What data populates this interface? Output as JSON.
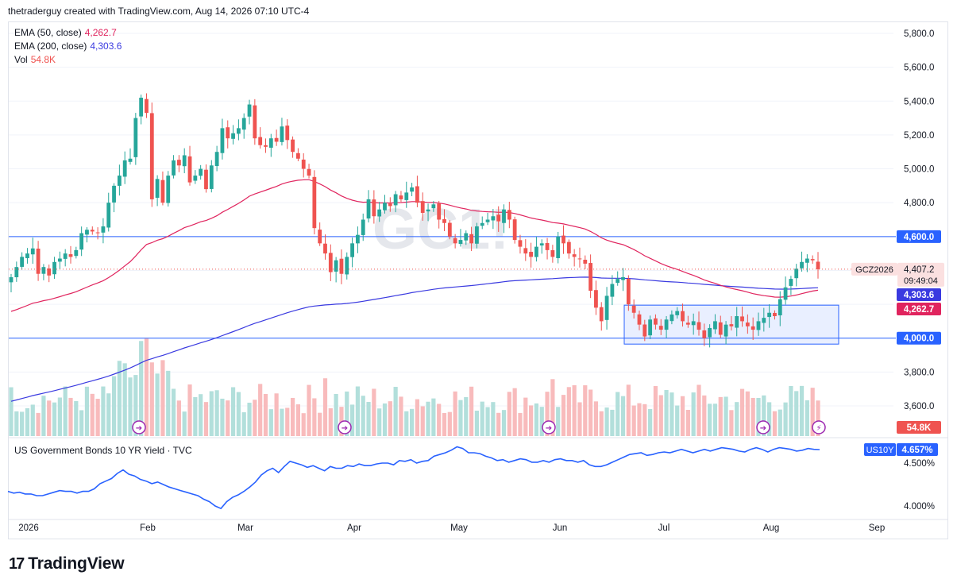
{
  "header": {
    "text": "thetraderguy created with TradingView.com, Aug 14, 2026 07:10 UTC-4"
  },
  "legend": {
    "ema50": {
      "label": "EMA (50, close)",
      "value": "4,262.7",
      "color": "#e0245e"
    },
    "ema200": {
      "label": "EMA (200, close)",
      "value": "4,303.6",
      "color": "#3a3ae0"
    },
    "vol": {
      "label": "Vol",
      "value": "54.8K",
      "color": "#ef5350"
    }
  },
  "watermark": "GC1!",
  "logo": {
    "mark": "17",
    "text": "TradingView"
  },
  "colors": {
    "up": "#26a69a",
    "down": "#ef5350",
    "up_vol": "#b2dfdb",
    "down_vol": "#f8bbbc",
    "grid": "#f0f3fa",
    "hline": "#2962ff",
    "box": "#2962ff"
  },
  "chart_data": [
    {
      "type": "candlestick",
      "title": "",
      "price_axis": {
        "ticks": [
          "5,800.0",
          "5,600.0",
          "5,400.0",
          "5,200.0",
          "5,000.0",
          "4,800.0",
          "3,800.0",
          "3,600.0"
        ],
        "ylim": [
          3450,
          5840
        ]
      },
      "time_axis": {
        "labels": [
          "2026",
          "Feb",
          "Mar",
          "Apr",
          "May",
          "Jun",
          "Jul",
          "Aug",
          "Sep"
        ]
      },
      "horizontal_lines": [
        {
          "price": 4600,
          "label": "4,600.0"
        },
        {
          "price": 4000,
          "label": "4,000.0"
        }
      ],
      "rectangle": {
        "price_top": 4195,
        "price_bottom": 3965,
        "start": "Jun 22",
        "end": "Aug 18"
      },
      "last_price": {
        "symbol": "GCZ2026",
        "price": "4,407.2",
        "countdown": "09:49:04"
      },
      "ema_labels": {
        "ema200": "4,303.6",
        "ema50": "4,262.7"
      },
      "volume_label": "54.8K",
      "close": [
        4360,
        4420,
        4480,
        4500,
        4530,
        4380,
        4420,
        4370,
        4450,
        4470,
        4500,
        4480,
        4520,
        4620,
        4640,
        4630,
        4620,
        4660,
        4800,
        4900,
        4960,
        5050,
        5060,
        5300,
        5420,
        5330,
        4820,
        4940,
        4800,
        4960,
        5050,
        5020,
        5080,
        4920,
        4960,
        5000,
        4880,
        5020,
        5100,
        5240,
        5180,
        5210,
        5240,
        5300,
        5380,
        5180,
        5140,
        5130,
        5180,
        5160,
        5250,
        5170,
        5100,
        5060,
        5000,
        4960,
        4650,
        4560,
        4500,
        4390,
        4460,
        4380,
        4480,
        4560,
        4610,
        4700,
        4820,
        4720,
        4760,
        4800,
        4780,
        4850,
        4820,
        4860,
        4890,
        4800,
        4740,
        4760,
        4790,
        4700,
        4680,
        4600,
        4560,
        4580,
        4620,
        4560,
        4660,
        4680,
        4700,
        4720,
        4690,
        4760,
        4700,
        4580,
        4540,
        4500,
        4480,
        4540,
        4560,
        4520,
        4480,
        4600,
        4560,
        4500,
        4480,
        4470,
        4440,
        4280,
        4180,
        4100,
        4250,
        4320,
        4350,
        4360,
        4200,
        4150,
        4080,
        4010,
        4110,
        4080,
        4050,
        4110,
        4140,
        4160,
        4100,
        4080,
        4100,
        4050,
        4000,
        4060,
        4100,
        4020,
        4080,
        4070,
        4130,
        4100,
        4070,
        4050,
        4100,
        4120,
        4150,
        4130,
        4230,
        4300,
        4350,
        4410,
        4450,
        4470,
        4460,
        4407.2
      ],
      "volume_note": "volume shown as histogram under price, last bar 54.8K"
    },
    {
      "type": "line",
      "series": [
        {
          "name": "US Government Bonds 10 YR Yield · TVC",
          "symbol": "US10Y",
          "last": "4.657%"
        }
      ],
      "y_ticks": [
        "4.500%",
        "4.000%"
      ],
      "ylim": [
        3.93,
        4.7
      ],
      "values": [
        4.17,
        4.15,
        4.16,
        4.14,
        4.14,
        4.12,
        4.12,
        4.14,
        4.16,
        4.18,
        4.17,
        4.17,
        4.15,
        4.17,
        4.17,
        4.2,
        4.26,
        4.29,
        4.32,
        4.38,
        4.42,
        4.37,
        4.35,
        4.31,
        4.29,
        4.26,
        4.28,
        4.25,
        4.22,
        4.2,
        4.18,
        4.16,
        4.14,
        4.12,
        4.08,
        4.05,
        4.0,
        3.97,
        4.05,
        4.1,
        4.13,
        4.17,
        4.22,
        4.28,
        4.36,
        4.41,
        4.44,
        4.39,
        4.46,
        4.52,
        4.5,
        4.48,
        4.45,
        4.47,
        4.44,
        4.41,
        4.46,
        4.44,
        4.44,
        4.47,
        4.46,
        4.49,
        4.47,
        4.47,
        4.49,
        4.5,
        4.5,
        4.48,
        4.53,
        4.52,
        4.54,
        4.5,
        4.52,
        4.53,
        4.58,
        4.6,
        4.62,
        4.65,
        4.69,
        4.67,
        4.62,
        4.62,
        4.61,
        4.58,
        4.56,
        4.53,
        4.54,
        4.51,
        4.53,
        4.55,
        4.54,
        4.51,
        4.51,
        4.53,
        4.51,
        4.54,
        4.55,
        4.53,
        4.53,
        4.51,
        4.53,
        4.48,
        4.46,
        4.46,
        4.48,
        4.51,
        4.54,
        4.57,
        4.6,
        4.61,
        4.62,
        4.59,
        4.6,
        4.62,
        4.63,
        4.62,
        4.64,
        4.66,
        4.64,
        4.62,
        4.64,
        4.66,
        4.64,
        4.66,
        4.68,
        4.67,
        4.66,
        4.64,
        4.63,
        4.66,
        4.68,
        4.66,
        4.63,
        4.66,
        4.68,
        4.67,
        4.66,
        4.64,
        4.65,
        4.67,
        4.66,
        4.657
      ]
    }
  ]
}
